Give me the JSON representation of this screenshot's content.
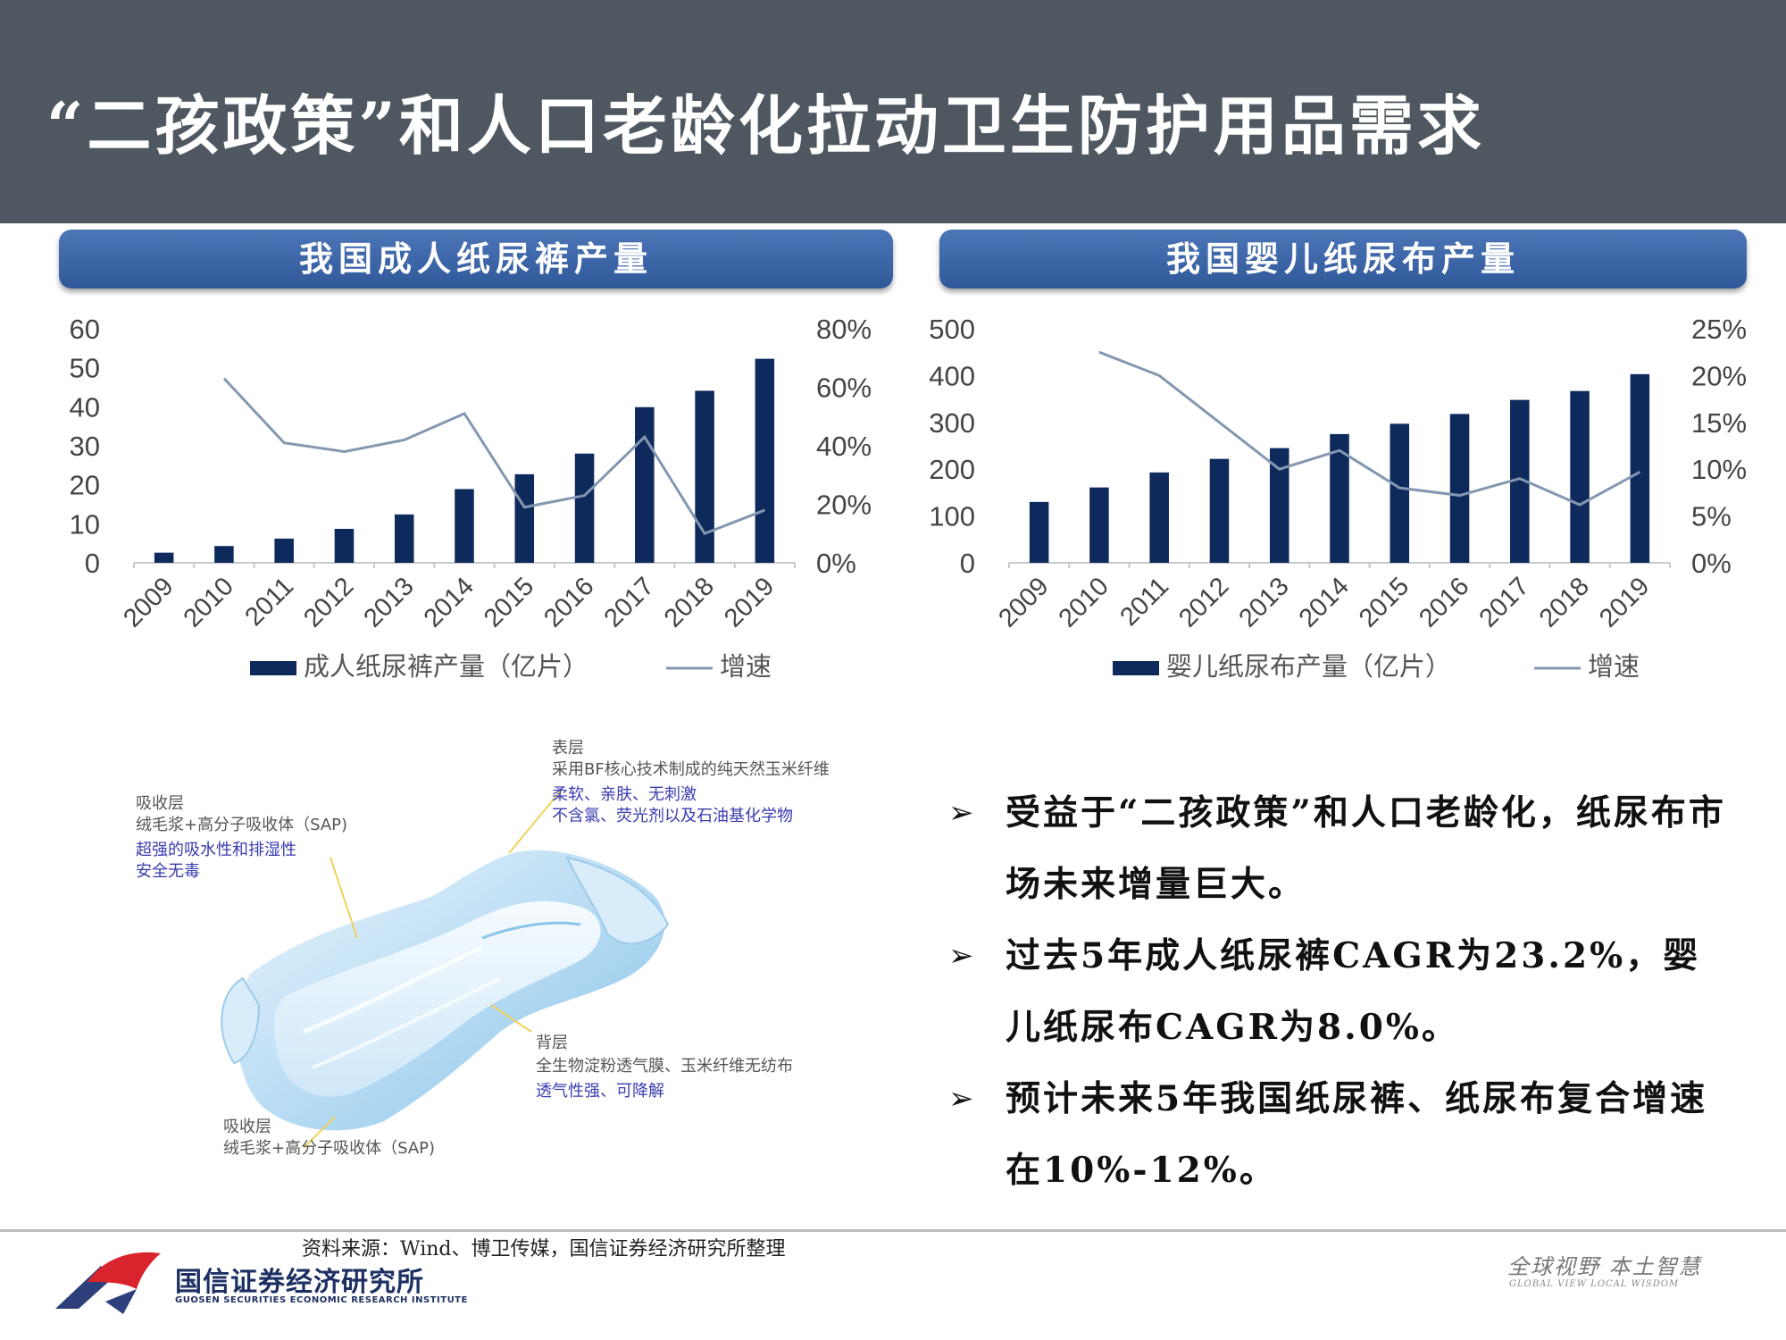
{
  "header": {
    "title": "“二孩政策”和人口老龄化拉动卫生防护用品需求"
  },
  "colors": {
    "title_bar": "#4f5861",
    "panel_header": "#3a63a8",
    "bar": "#0e2a5c",
    "line": "#8497b0"
  },
  "chart_data": [
    {
      "type": "bar",
      "title": "我国成人纸尿裤产量",
      "categories": [
        "2009",
        "2010",
        "2011",
        "2012",
        "2013",
        "2014",
        "2015",
        "2016",
        "2017",
        "2018",
        "2019"
      ],
      "series": [
        {
          "name": "成人纸尿裤产量（亿片）",
          "type": "bar",
          "axis": "left",
          "values": [
            2.6,
            4.3,
            6.2,
            8.7,
            12.4,
            18.9,
            22.7,
            28.0,
            39.9,
            44.1,
            52.3
          ]
        },
        {
          "name": "增速",
          "type": "line",
          "axis": "right",
          "values": [
            null,
            0.63,
            0.41,
            0.38,
            0.42,
            0.51,
            0.19,
            0.23,
            0.43,
            0.1,
            0.18
          ]
        }
      ],
      "ylim_left": [
        0,
        60
      ],
      "yticks_left": [
        "0",
        "10",
        "20",
        "30",
        "40",
        "50",
        "60"
      ],
      "ylim_right": [
        0,
        0.8
      ],
      "yticks_right": [
        "0%",
        "20%",
        "40%",
        "60%",
        "80%"
      ],
      "legend": "bottom"
    },
    {
      "type": "bar",
      "title": "我国婴儿纸尿布产量",
      "categories": [
        "2009",
        "2010",
        "2011",
        "2012",
        "2013",
        "2014",
        "2015",
        "2016",
        "2017",
        "2018",
        "2019"
      ],
      "series": [
        {
          "name": "婴儿纸尿布产量（亿片）",
          "type": "bar",
          "axis": "left",
          "values": [
            130,
            161,
            193,
            222,
            245,
            275,
            297,
            318,
            348,
            367,
            403
          ]
        },
        {
          "name": "增速",
          "type": "line",
          "axis": "right",
          "values": [
            null,
            0.225,
            0.2,
            0.15,
            0.1,
            0.12,
            0.08,
            0.072,
            0.09,
            0.062,
            0.097
          ]
        }
      ],
      "ylim_left": [
        0,
        500
      ],
      "yticks_left": [
        "0",
        "100",
        "200",
        "300",
        "400",
        "500"
      ],
      "ylim_right": [
        0,
        0.25
      ],
      "yticks_right": [
        "0%",
        "5%",
        "10%",
        "15%",
        "20%",
        "25%"
      ],
      "legend": "bottom"
    }
  ],
  "diagram": {
    "top_title": "表层",
    "top_line1": "采用BF核心技术制成的纯天然玉米纤维",
    "top_line2": "柔软、亲肤、无刺激",
    "top_line3": "不含氯、荧光剂以及石油基化学物",
    "left_title": "吸收层",
    "left_line1": "绒毛浆+高分子吸收体（SAP)",
    "left_line2": "超强的吸水性和排湿性",
    "left_line3": "安全无毒",
    "back_title": "背层",
    "back_line1": "全生物淀粉透气膜、玉米纤维无纺布",
    "back_line2": "透气性强、可降解",
    "bottom_title": "吸收层",
    "bottom_line1": "绒毛浆+高分子吸收体（SAP)"
  },
  "bullets": [
    "受益于“二孩政策”和人口老龄化，纸尿布市场未来增量巨大。",
    "过去5年成人纸尿裤CAGR为23.2%，婴儿纸尿布CAGR为8.0%。",
    "预计未来5年我国纸尿裤、纸尿布复合增速在10%-12%。"
  ],
  "footer": {
    "source": "资料来源：Wind、博卫传媒，国信证券经济研究所整理",
    "company_cn": "国信证券经济研究所",
    "company_en": "GUOSEN SECURITIES ECONOMIC RESEARCH INSTITUTE",
    "slogan": "全球视野 本土智慧",
    "slogan_en": "GLOBAL VIEW  LOCAL WISDOM"
  }
}
